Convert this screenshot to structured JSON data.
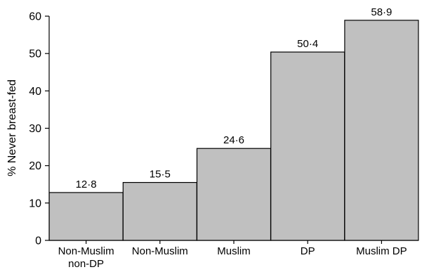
{
  "chart_data": {
    "type": "bar",
    "title": "",
    "xlabel": "",
    "ylabel": "% Never breast-fed",
    "ylim": [
      0,
      60
    ],
    "yticks": [
      0,
      10,
      20,
      30,
      40,
      50,
      60
    ],
    "grid": false,
    "legend": "none",
    "categories": [
      [
        "Non-Muslim",
        "non-DP"
      ],
      [
        "Non-Muslim"
      ],
      [
        "Muslim"
      ],
      [
        "DP"
      ],
      [
        "Muslim DP"
      ]
    ],
    "values": [
      12.8,
      15.5,
      24.6,
      50.4,
      58.9
    ],
    "data_labels": [
      "12·8",
      "15·5",
      "24·6",
      "50·4",
      "58·9"
    ],
    "bar_color": "#c0c0c0",
    "bar_edge_color": "#000000"
  }
}
